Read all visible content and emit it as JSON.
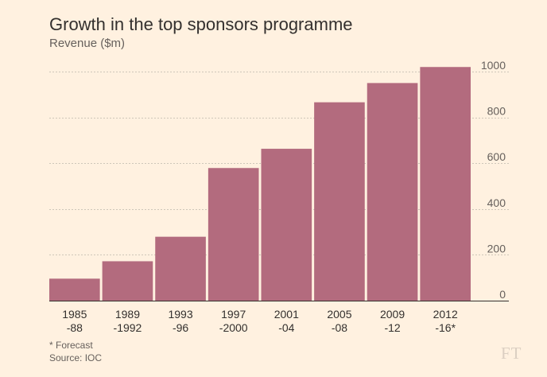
{
  "chart_data": {
    "type": "bar",
    "title": "Growth in the top sponsors programme",
    "subtitle": "Revenue ($m)",
    "ylabel": "Revenue ($m)",
    "xlabel": "",
    "categories": [
      [
        "1985",
        "-88"
      ],
      [
        "1989",
        "-1992"
      ],
      [
        "1993",
        "-96"
      ],
      [
        "1997",
        "-2000"
      ],
      [
        "2001",
        "-04"
      ],
      [
        "2005",
        "-08"
      ],
      [
        "2009",
        "-12"
      ],
      [
        "2012",
        "-16*"
      ]
    ],
    "values": [
      96,
      172,
      279,
      579,
      663,
      866,
      950,
      1020
    ],
    "ylim": [
      0,
      1000
    ],
    "yticks": [
      0,
      200,
      400,
      600,
      800,
      1000
    ],
    "grid": true,
    "y_axis_side": "right",
    "bar_color": "#B36B7E"
  },
  "footnote": "* Forecast",
  "source": "Source: IOC",
  "logo": "FT"
}
